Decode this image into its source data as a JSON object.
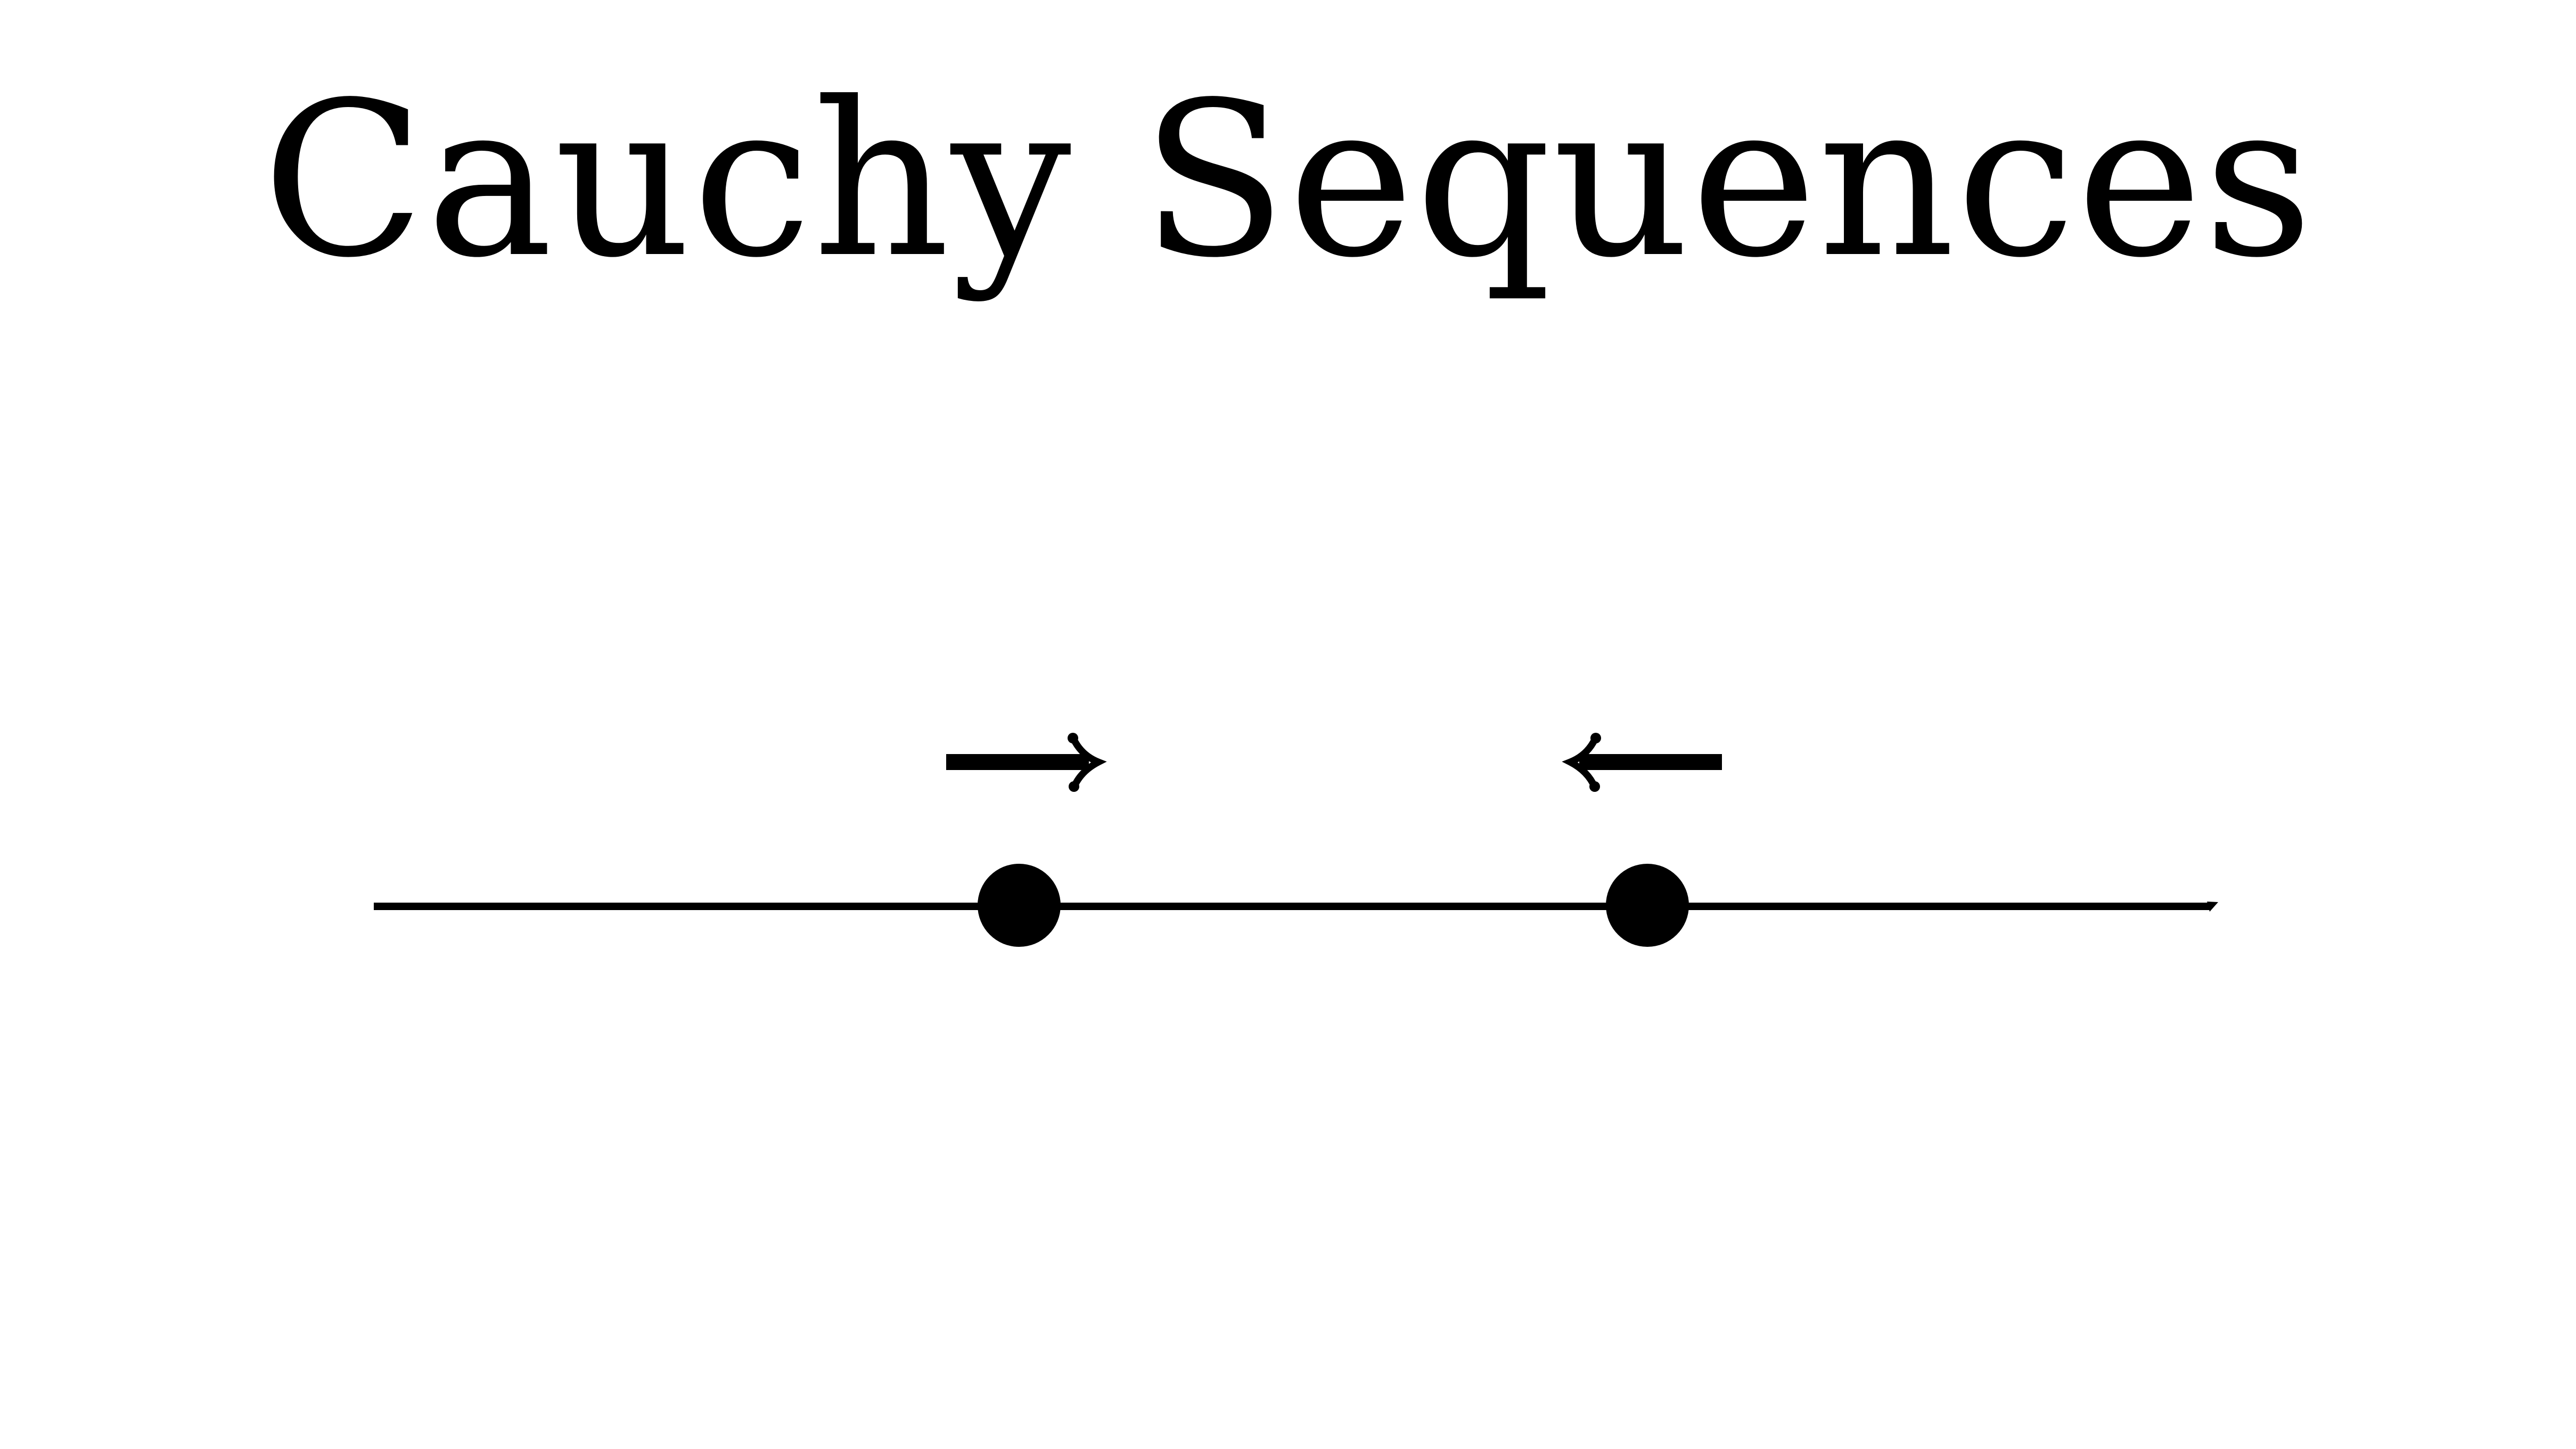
{
  "title": "Cauchy Sequences",
  "colors": {
    "background": "#ffffff",
    "ink": "#000000"
  },
  "diagram": {
    "line": {
      "icon": "number-line-with-arrowhead"
    },
    "points": [
      {
        "icon": "filled-circle-point",
        "direction": "right",
        "arrow_icon": "right-arrow-icon"
      },
      {
        "icon": "filled-circle-point",
        "direction": "left",
        "arrow_icon": "left-arrow-icon"
      }
    ]
  }
}
